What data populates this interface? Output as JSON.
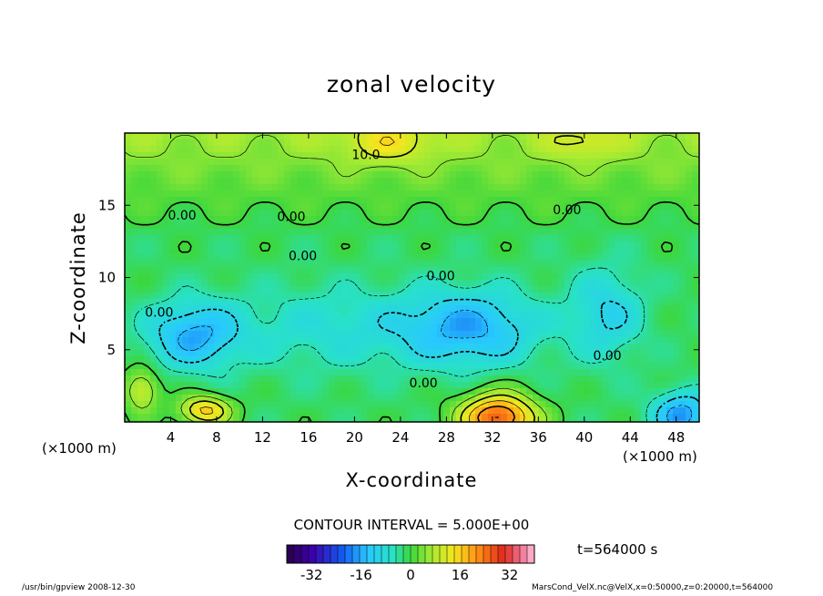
{
  "chart_data": {
    "type": "contour",
    "title": "zonal velocity",
    "xlabel": "X-coordinate",
    "ylabel": "Z-coordinate",
    "x_unit": "(×1000 m)",
    "x_ticks": [
      4,
      8,
      12,
      16,
      20,
      24,
      28,
      32,
      36,
      40,
      44,
      48
    ],
    "y_ticks": [
      5,
      10,
      15
    ],
    "xlim": [
      0,
      50
    ],
    "ylim": [
      0,
      20
    ],
    "contour_interval_text": "CONTOUR INTERVAL = 5.000E+00",
    "contour_interval": 5,
    "contour_labels": [
      "10.0",
      "0.00",
      "0.00",
      "0.00",
      "0.00",
      "0.00",
      "0.00",
      "0.00",
      "0.00"
    ],
    "colorbar": {
      "range": [
        -40,
        40
      ],
      "ticks": [
        -32,
        -16,
        0,
        16,
        32
      ],
      "tick_labels": [
        "-32",
        "-16",
        "0",
        "16",
        "32"
      ]
    },
    "features": [
      {
        "kind": "min",
        "x": 6,
        "z": 6,
        "value": -15
      },
      {
        "kind": "min",
        "x": 30,
        "z": 6.5,
        "value": -15
      },
      {
        "kind": "min",
        "x": 42,
        "z": 7.5,
        "value": -10
      },
      {
        "kind": "min",
        "x": 48.5,
        "z": 0.5,
        "value": -16
      },
      {
        "kind": "max",
        "x": 32.5,
        "z": 0.3,
        "value": 28
      },
      {
        "kind": "max",
        "x": 7,
        "z": 0.8,
        "value": 18
      },
      {
        "kind": "max",
        "x": 1.5,
        "z": 2.2,
        "value": 14
      },
      {
        "kind": "max",
        "x": 23,
        "z": 19.3,
        "value": 16
      },
      {
        "kind": "max",
        "x": 40,
        "z": 19.3,
        "value": 14
      }
    ]
  },
  "time_label": "t=564000 s",
  "footer_left": "/usr/bin/gpview   2008-12-30",
  "footer_right": "MarsCond_VelX.nc@VelX,x=0:50000,z=0:20000,t=564000"
}
